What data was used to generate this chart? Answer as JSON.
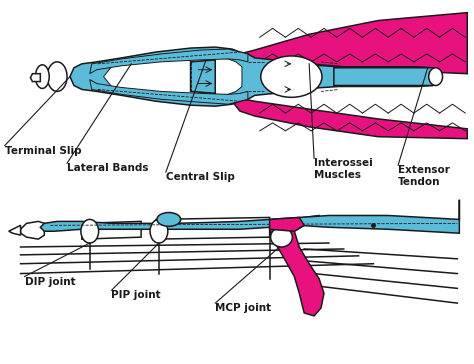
{
  "blue": "#5BBCDA",
  "magenta": "#E8127F",
  "black": "#1A1A1A",
  "white": "#FFFFFF",
  "bg": "#FFFFFF",
  "lw": 1.1,
  "lw_thin": 0.7,
  "labels": {
    "terminal_slip": "Terminal Slip",
    "lateral_bands": "Lateral Bands",
    "central_slip": "Central Slip",
    "interossei": "Interossei\nMuscles",
    "extensor": "Extensor\nTendon",
    "dip": "DIP joint",
    "pip": "PIP joint",
    "mcp": "MCP joint"
  }
}
